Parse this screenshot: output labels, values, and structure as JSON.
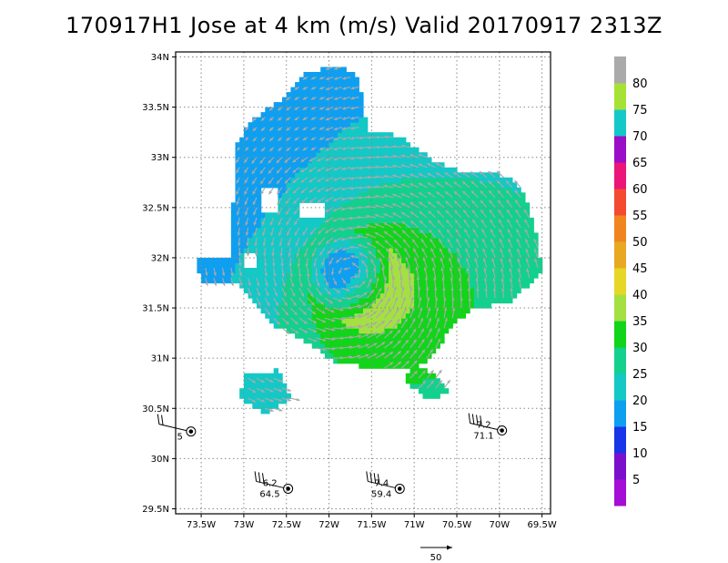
{
  "title": "170917H1 Jose at 4 km (m/s) Valid 20170917 2313Z",
  "chart_data": {
    "type": "heatmap",
    "title": "170917H1 Jose at 4 km (m/s) Valid 20170917 2313Z",
    "xlabel": "",
    "ylabel": "",
    "xlim": [
      -73.8,
      -69.4
    ],
    "ylim": [
      29.45,
      34.05
    ],
    "x_ticks": [
      {
        "value": -73.5,
        "label": "73.5W"
      },
      {
        "value": -73,
        "label": "73W"
      },
      {
        "value": -72.5,
        "label": "72.5W"
      },
      {
        "value": -72,
        "label": "72W"
      },
      {
        "value": -71.5,
        "label": "71.5W"
      },
      {
        "value": -71,
        "label": "71W"
      },
      {
        "value": -70.5,
        "label": "70.5W"
      },
      {
        "value": -70,
        "label": "70W"
      },
      {
        "value": -69.5,
        "label": "69.5W"
      }
    ],
    "y_ticks": [
      {
        "value": 34,
        "label": "34N"
      },
      {
        "value": 33.5,
        "label": "33.5N"
      },
      {
        "value": 33,
        "label": "33N"
      },
      {
        "value": 32.5,
        "label": "32.5N"
      },
      {
        "value": 32,
        "label": "32N"
      },
      {
        "value": 31.5,
        "label": "31.5N"
      },
      {
        "value": 31,
        "label": "31N"
      },
      {
        "value": 30.5,
        "label": "30.5N"
      },
      {
        "value": 30,
        "label": "30N"
      },
      {
        "value": 29.5,
        "label": "29.5N"
      }
    ],
    "grid": true,
    "storm_center": {
      "lon": -71.75,
      "lat": 31.83
    },
    "colorbar": {
      "colors": [
        "#a40fd6",
        "#7b10cc",
        "#1a34e8",
        "#0f9ff0",
        "#14c8c6",
        "#13d08e",
        "#12d41a",
        "#a5e043",
        "#e6d726",
        "#e8a822",
        "#f08520",
        "#f44a30",
        "#ec1578",
        "#9a0ec8",
        "#15c8c8",
        "#a6e236",
        "#aaaaaa"
      ],
      "labels": [
        "5",
        "10",
        "15",
        "20",
        "25",
        "30",
        "35",
        "40",
        "45",
        "50",
        "55",
        "60",
        "65",
        "70",
        "75",
        "80"
      ]
    },
    "stations": [
      {
        "lon": -73.62,
        "lat": 30.27,
        "value_top": "",
        "value_bottom": "5",
        "barbs": 2
      },
      {
        "lon": -72.48,
        "lat": 29.7,
        "value_top": "6.2",
        "value_bottom": "64.5",
        "barbs": 3
      },
      {
        "lon": -71.17,
        "lat": 29.7,
        "value_top": "7.4",
        "value_bottom": "59.4",
        "barbs": 4
      },
      {
        "lon": -69.97,
        "lat": 30.28,
        "value_top": "7.2",
        "value_bottom": "71.1",
        "barbs": 4
      }
    ],
    "reference_vector": {
      "label": "50"
    }
  }
}
